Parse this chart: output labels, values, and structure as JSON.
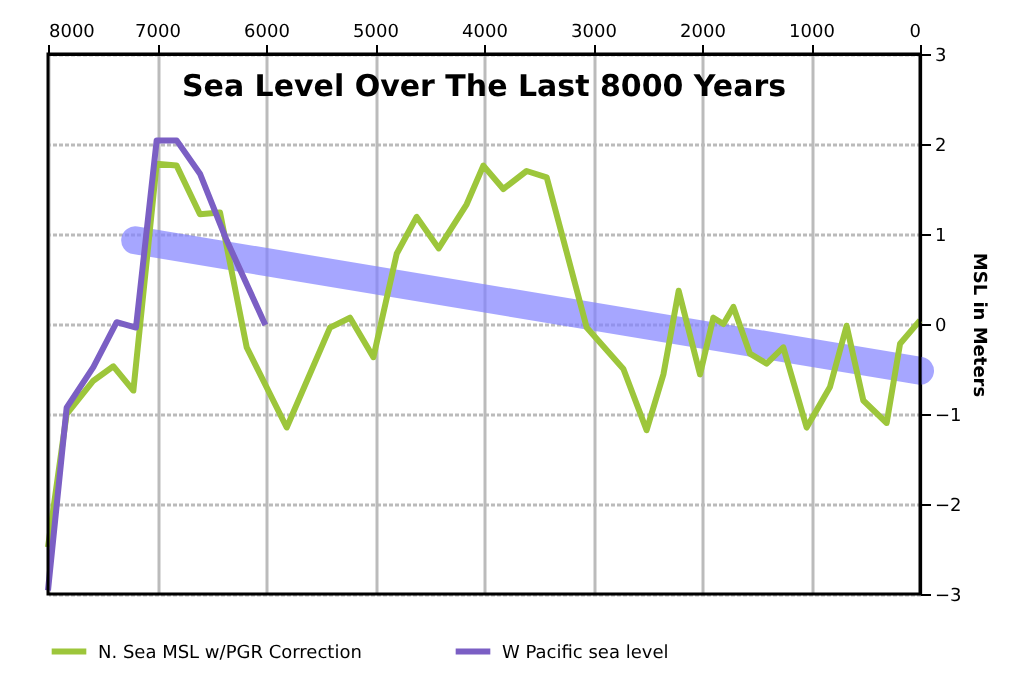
{
  "chart_data": {
    "type": "line",
    "title": "Sea Level Over The Last 8000 Years",
    "ylabel": "MSL in Meters",
    "xlim": [
      8000,
      0
    ],
    "xticks": [
      8000,
      7000,
      6000,
      5000,
      4000,
      3000,
      2000,
      1000,
      0
    ],
    "ylim": [
      -3,
      3
    ],
    "yticks": [
      -3,
      -2,
      -1,
      0,
      1,
      2,
      3
    ],
    "grid": true,
    "legend": "bottom",
    "marker": "none",
    "line_style": "solid",
    "series": [
      {
        "name": "N. Sea MSL w/PGR Correction",
        "color": "#9dc63b",
        "x": [
          8000,
          7829,
          7584,
          7400,
          7217,
          7003,
          6820,
          6606,
          6422,
          6177,
          5810,
          5413,
          5229,
          5015,
          4801,
          4618,
          4416,
          4159,
          4006,
          3823,
          3609,
          3425,
          3242,
          3058,
          2721,
          2508,
          2354,
          2214,
          2018,
          1896,
          1804,
          1712,
          1560,
          1407,
          1254,
          1040,
          826,
          673,
          520,
          306,
          183,
          0
        ],
        "values": [
          -2.48,
          -1.0,
          -0.63,
          -0.47,
          -0.74,
          1.78,
          1.76,
          1.22,
          1.24,
          -0.26,
          -1.15,
          -0.04,
          0.07,
          -0.37,
          0.78,
          1.19,
          0.84,
          1.33,
          1.76,
          1.5,
          1.7,
          1.63,
          0.8,
          -0.04,
          -0.5,
          -1.18,
          -0.56,
          0.37,
          -0.56,
          0.07,
          0.0,
          0.19,
          -0.33,
          -0.44,
          -0.26,
          -1.15,
          -0.7,
          -0.02,
          -0.85,
          -1.1,
          -0.22,
          0.04
        ]
      },
      {
        "name": "W Pacific sea level",
        "color": "#7b5fc4",
        "x": [
          8000,
          7829,
          7584,
          7370,
          7193,
          7003,
          6820,
          6606,
          6361,
          6006
        ],
        "values": [
          -2.96,
          -0.93,
          -0.48,
          0.02,
          -0.04,
          2.04,
          2.04,
          1.67,
          0.93,
          -0.01
        ]
      },
      {
        "type": "line",
        "color": "#8080ff",
        "x": [
          7200,
          0
        ],
        "values": [
          0.93,
          -0.52
        ]
      }
    ]
  }
}
